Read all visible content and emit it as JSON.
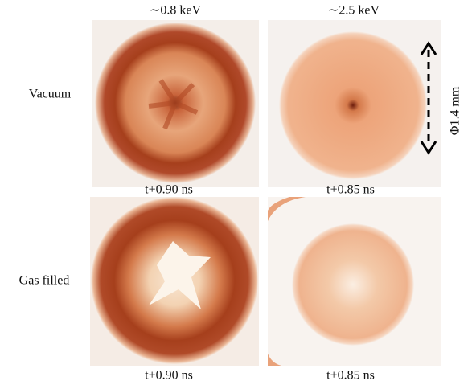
{
  "columns": [
    "∼0.8 keV",
    "∼2.5 keV"
  ],
  "rows": [
    {
      "label": "Vacuum",
      "captions": [
        "t+0.90 ns",
        "t+0.85 ns"
      ]
    },
    {
      "label": "Gas filled",
      "captions": [
        "t+0.90 ns",
        "t+0.85 ns"
      ]
    }
  ],
  "scale_label": "Φ1.4 mm"
}
